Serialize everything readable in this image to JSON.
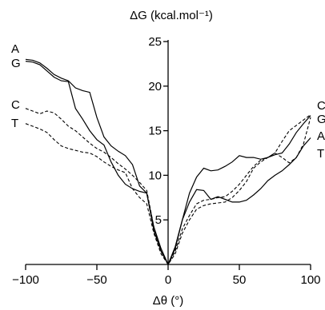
{
  "chart_data": {
    "type": "line",
    "title": "",
    "xlabel": "Δθ (°)",
    "ylabel": "ΔG (kcal.mol⁻¹)",
    "xlim": [
      -100,
      100
    ],
    "ylim": [
      0,
      25
    ],
    "x_ticks": [
      -100,
      -50,
      0,
      50,
      100
    ],
    "x_tick_labels": [
      "−100",
      "−50",
      "0",
      "50",
      "100"
    ],
    "y_ticks": [
      5,
      10,
      15,
      20,
      25
    ],
    "y_tick_labels": [
      "5",
      "10",
      "15",
      "20",
      "25"
    ],
    "grid": false,
    "series": [
      {
        "name": "A",
        "style": "solid",
        "x": [
          -100,
          -95,
          -90,
          -85,
          -80,
          -75,
          -70,
          -65,
          -60,
          -55,
          -50,
          -45,
          -40,
          -35,
          -30,
          -25,
          -20,
          -15,
          -10,
          -5,
          0,
          5,
          10,
          15,
          20,
          25,
          30,
          35,
          40,
          45,
          50,
          55,
          60,
          65,
          70,
          75,
          80,
          85,
          90,
          95,
          100
        ],
        "values": [
          23.0,
          22.9,
          22.6,
          22.0,
          21.3,
          20.9,
          20.6,
          19.8,
          19.5,
          19.3,
          16.5,
          14.3,
          13.3,
          12.7,
          12.2,
          11.2,
          8.8,
          8.0,
          4.2,
          1.8,
          0.0,
          1.8,
          5.0,
          7.0,
          8.4,
          8.3,
          7.3,
          7.6,
          7.3,
          7.0,
          7.0,
          7.2,
          7.8,
          8.5,
          9.4,
          10.0,
          10.5,
          11.2,
          12.0,
          13.3,
          14.2
        ]
      },
      {
        "name": "G",
        "style": "solid",
        "x": [
          -100,
          -95,
          -90,
          -85,
          -80,
          -75,
          -70,
          -65,
          -60,
          -55,
          -50,
          -45,
          -40,
          -35,
          -30,
          -25,
          -20,
          -15,
          -10,
          -5,
          0,
          5,
          10,
          15,
          20,
          25,
          30,
          35,
          40,
          45,
          50,
          55,
          60,
          65,
          70,
          75,
          80,
          85,
          90,
          95,
          100
        ],
        "values": [
          22.8,
          22.7,
          22.4,
          21.7,
          21.0,
          20.6,
          20.5,
          17.5,
          16.3,
          15.0,
          14.0,
          13.4,
          11.5,
          10.0,
          9.0,
          8.5,
          8.2,
          8.0,
          3.8,
          1.5,
          0.0,
          2.0,
          5.0,
          8.0,
          9.8,
          10.8,
          10.5,
          10.6,
          11.0,
          11.5,
          12.2,
          12.0,
          12.0,
          11.8,
          12.0,
          12.3,
          12.5,
          13.5,
          14.8,
          15.8,
          16.7
        ]
      },
      {
        "name": "C",
        "style": "dashed",
        "x": [
          -100,
          -95,
          -90,
          -85,
          -80,
          -75,
          -70,
          -65,
          -60,
          -55,
          -50,
          -45,
          -40,
          -35,
          -30,
          -25,
          -20,
          -15,
          -10,
          -5,
          0,
          5,
          10,
          15,
          20,
          25,
          30,
          35,
          40,
          45,
          50,
          55,
          60,
          65,
          70,
          75,
          80,
          85,
          90,
          95,
          100
        ],
        "values": [
          17.5,
          17.2,
          16.9,
          17.2,
          17.0,
          16.3,
          15.5,
          15.0,
          14.3,
          13.6,
          13.0,
          12.6,
          12.0,
          11.3,
          10.7,
          10.0,
          9.2,
          8.3,
          4.2,
          1.5,
          0.0,
          1.5,
          4.0,
          5.5,
          6.8,
          7.2,
          7.3,
          7.5,
          7.6,
          8.2,
          9.0,
          10.0,
          11.0,
          11.7,
          12.0,
          12.5,
          13.8,
          15.0,
          15.6,
          16.2,
          16.8
        ]
      },
      {
        "name": "T",
        "style": "dashed",
        "x": [
          -100,
          -95,
          -90,
          -85,
          -80,
          -75,
          -70,
          -65,
          -60,
          -55,
          -50,
          -45,
          -40,
          -35,
          -30,
          -25,
          -20,
          -15,
          -10,
          -5,
          0,
          5,
          10,
          15,
          20,
          25,
          30,
          35,
          40,
          45,
          50,
          55,
          60,
          65,
          70,
          75,
          80,
          85,
          90,
          95,
          100
        ],
        "values": [
          15.8,
          15.5,
          15.2,
          14.8,
          14.0,
          13.3,
          13.0,
          12.8,
          12.6,
          12.5,
          12.1,
          11.5,
          11.0,
          10.6,
          10.3,
          8.5,
          7.5,
          6.8,
          3.5,
          1.2,
          0.0,
          1.2,
          3.5,
          5.0,
          6.2,
          6.6,
          6.8,
          6.9,
          7.0,
          7.5,
          8.3,
          9.3,
          10.8,
          11.5,
          12.0,
          12.5,
          12.0,
          11.4,
          12.0,
          13.5,
          16.5
        ]
      }
    ],
    "left_labels": [
      "A",
      "G",
      "C",
      "T"
    ],
    "right_labels": [
      "C",
      "G",
      "A",
      "T"
    ]
  }
}
